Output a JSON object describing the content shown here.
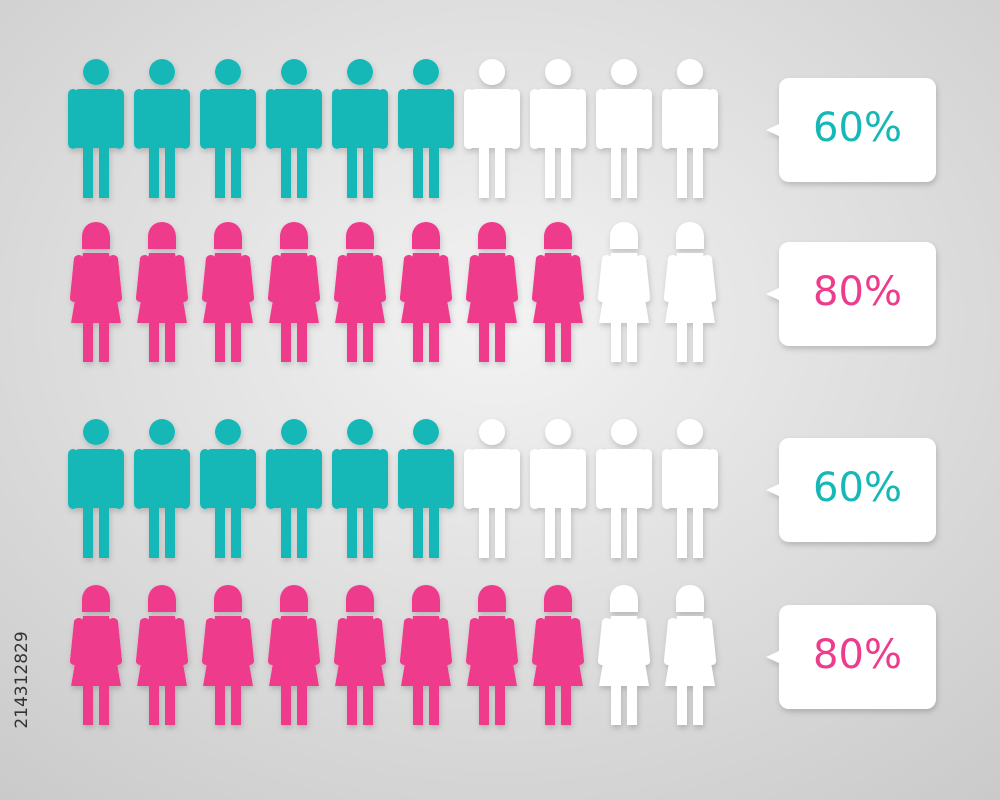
{
  "chart_data": [
    {
      "type": "pictograph",
      "icon": "man",
      "values": [
        60
      ],
      "value_labels": [
        "60%"
      ],
      "color": "#15b7b7",
      "xlim": [
        0,
        100
      ]
    },
    {
      "type": "pictograph",
      "icon": "woman",
      "values": [
        80
      ],
      "value_labels": [
        "80%"
      ],
      "color": "#ee3b8c",
      "xlim": [
        0,
        100
      ]
    },
    {
      "type": "pictograph",
      "icon": "man",
      "values": [
        60
      ],
      "value_labels": [
        "60%"
      ],
      "color": "#15b7b7",
      "xlim": [
        0,
        100
      ]
    },
    {
      "type": "pictograph",
      "icon": "woman",
      "values": [
        80
      ],
      "value_labels": [
        "80%"
      ],
      "color": "#ee3b8c",
      "xlim": [
        0,
        100
      ]
    }
  ],
  "watermark": "214312829"
}
